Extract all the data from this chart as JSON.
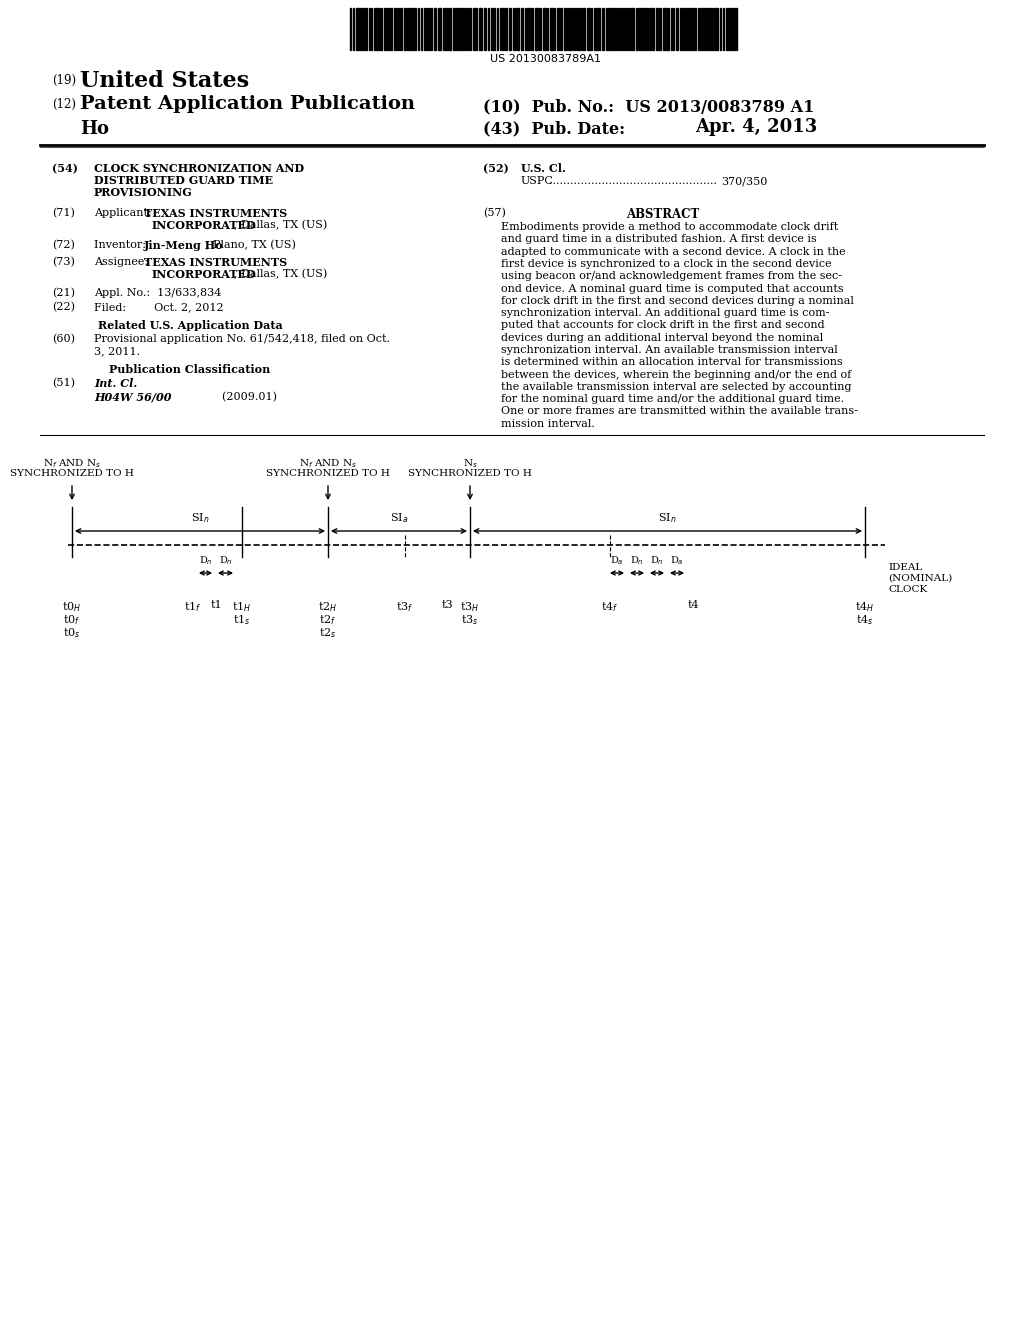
{
  "barcode_text": "US 20130083789A1",
  "background_color": "#ffffff",
  "abstract_lines": [
    "Embodiments provide a method to accommodate clock drift",
    "and guard time in a distributed fashion. A first device is",
    "adapted to communicate with a second device. A clock in the",
    "first device is synchronized to a clock in the second device",
    "using beacon or/and acknowledgement frames from the sec-",
    "ond device. A nominal guard time is computed that accounts",
    "for clock drift in the first and second devices during a nominal",
    "synchronization interval. An additional guard time is com-",
    "puted that accounts for clock drift in the first and second",
    "devices during an additional interval beyond the nominal",
    "synchronization interval. An available transmission interval",
    "is determined within an allocation interval for transmissions",
    "between the devices, wherein the beginning and/or the end of",
    "the available transmission interval are selected by accounting",
    "for the nominal guard time and/or the additional guard time.",
    "One or more frames are transmitted within the available trans-",
    "mission interval."
  ]
}
